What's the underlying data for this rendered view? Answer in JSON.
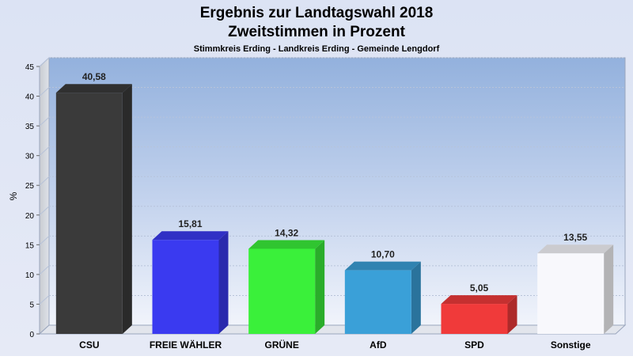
{
  "chart_data": {
    "type": "bar",
    "title": "Ergebnis zur Landtagswahl 2018",
    "subtitle": "Zweitstimmen in Prozent",
    "caption": "Stimmkreis Erding - Landkreis Erding - Gemeinde Lengdorf",
    "ylabel": "%",
    "xlabel": "",
    "ylim": [
      0,
      45
    ],
    "yticks": [
      0,
      5,
      10,
      15,
      20,
      25,
      30,
      35,
      40,
      45
    ],
    "grid": true,
    "categories": [
      "CSU",
      "FREIE WÄHLER",
      "GRÜNE",
      "AfD",
      "SPD",
      "Sonstige"
    ],
    "values": [
      40.58,
      15.81,
      14.32,
      10.7,
      5.05,
      13.55
    ],
    "value_labels": [
      "40,58",
      "15,81",
      "14,32",
      "10,70",
      "5,05",
      "13,55"
    ],
    "colors": [
      "#3a3a3a",
      "#3a3af0",
      "#3af03a",
      "#3aa0d8",
      "#f03a3a",
      "#f8f8fc"
    ]
  }
}
